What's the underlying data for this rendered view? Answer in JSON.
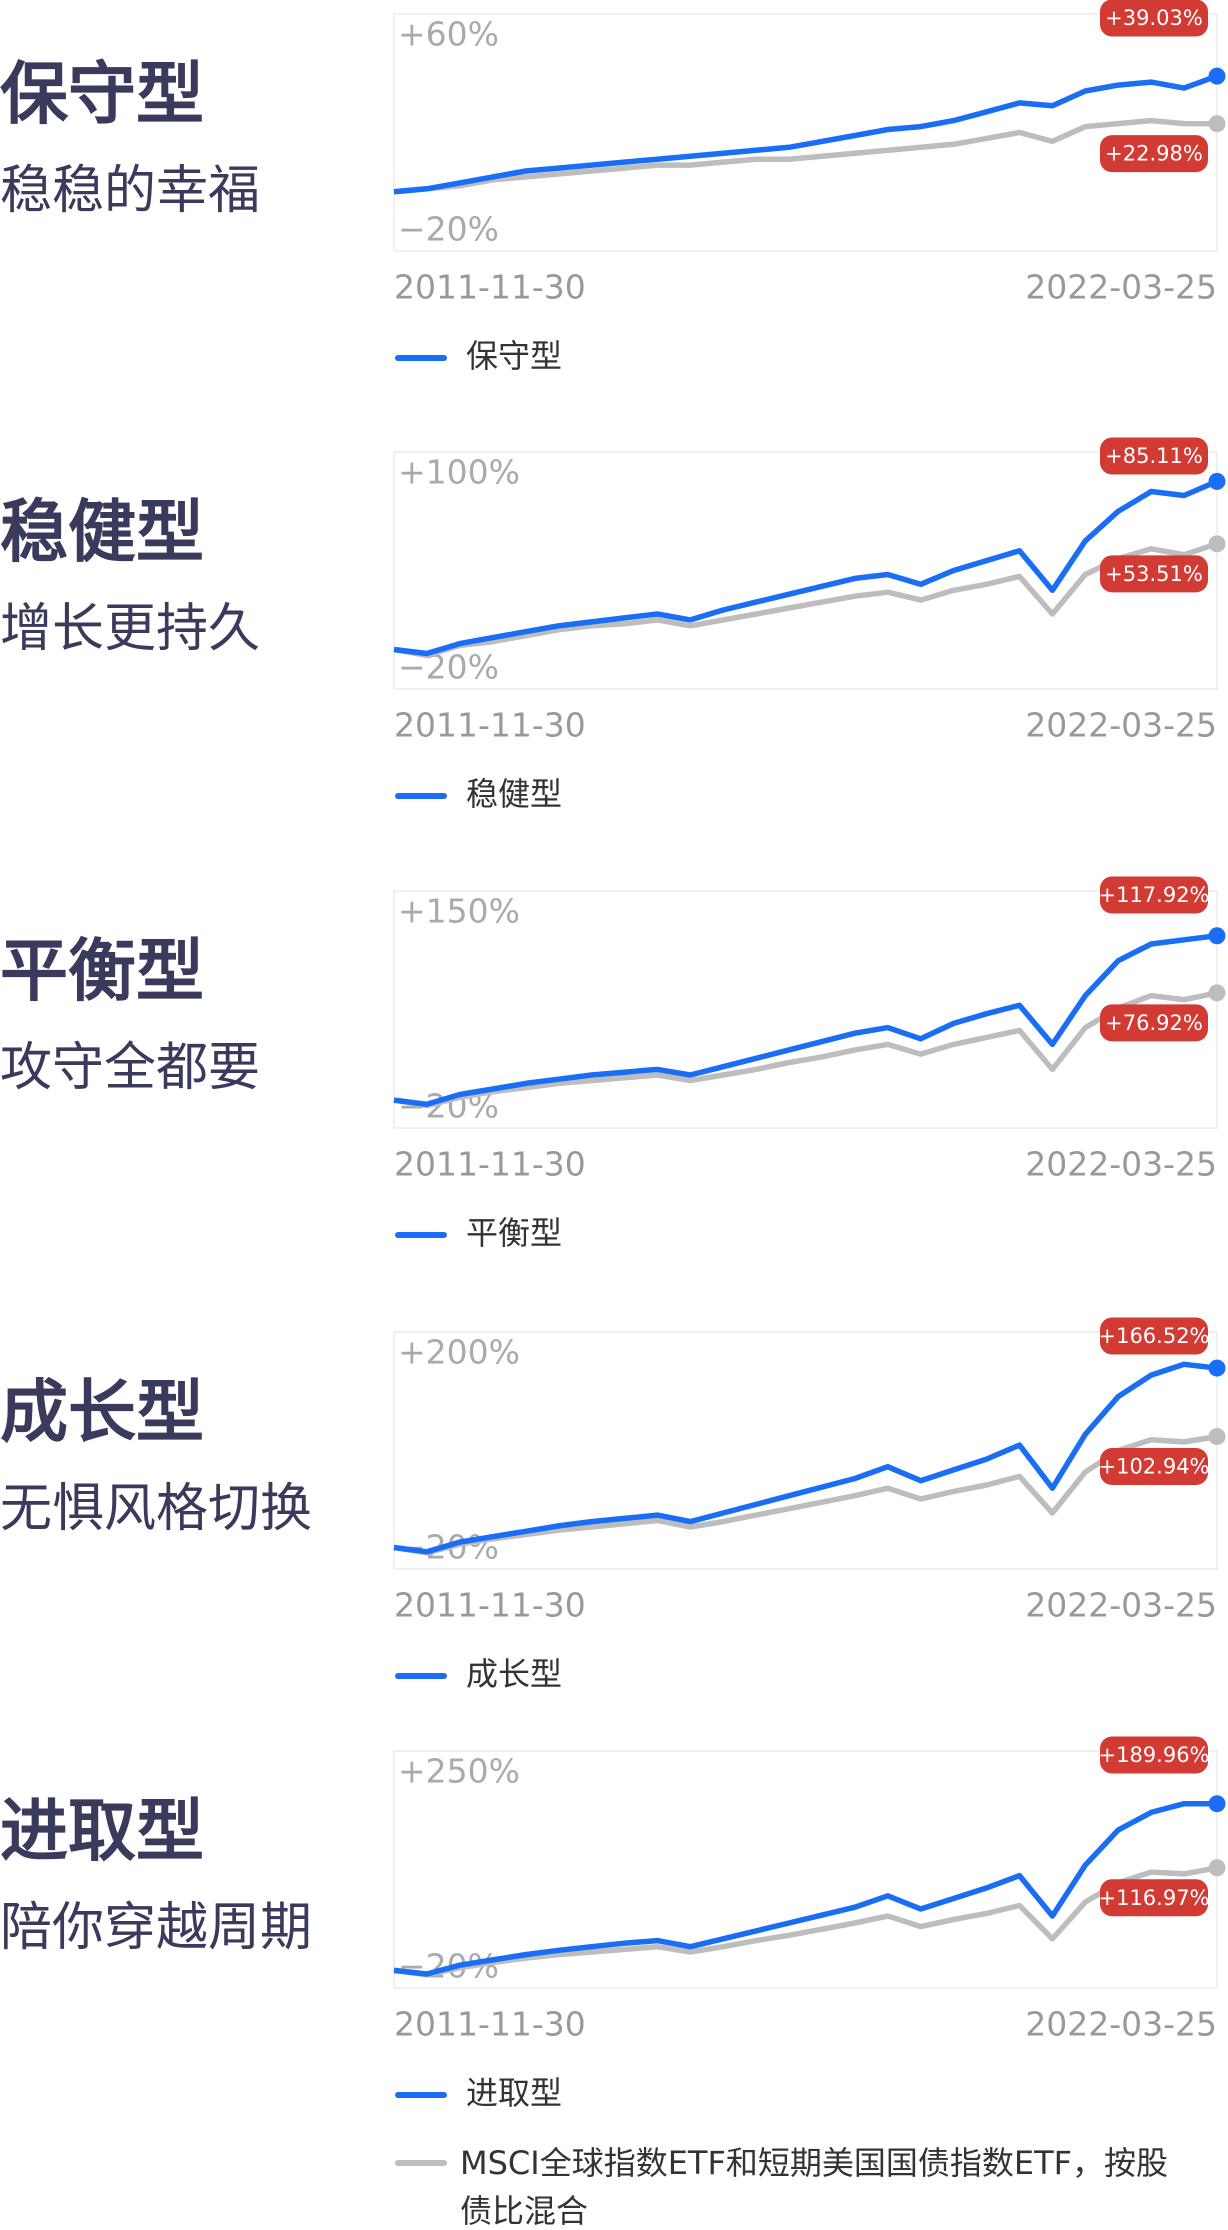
{
  "chart_data": [
    {
      "type": "line",
      "title": "保守型",
      "subtitle": "稳稳的幸福",
      "categories": [
        "2011-11-30",
        null,
        null,
        null,
        null,
        null,
        null,
        null,
        null,
        null,
        null,
        null,
        null,
        null,
        null,
        null,
        null,
        null,
        null,
        null,
        null,
        null,
        null,
        null,
        null,
        "2022-03-25"
      ],
      "ylim": [
        -20,
        60
      ],
      "yticks": [
        {
          "value": 60,
          "label": "+60%"
        },
        {
          "value": -20,
          "label": "−20%"
        }
      ],
      "series": [
        {
          "name": "保守型",
          "color": "#1a6ef5",
          "values": [
            0,
            1,
            3,
            5,
            7,
            8,
            9,
            10,
            11,
            12,
            13,
            14,
            15,
            17,
            19,
            21,
            22,
            24,
            27,
            30,
            29,
            34,
            36,
            37,
            35,
            39.03
          ],
          "value_labels": [
            null,
            null,
            null,
            null,
            null,
            null,
            null,
            null,
            null,
            null,
            null,
            null,
            null,
            null,
            null,
            null,
            null,
            null,
            null,
            null,
            null,
            null,
            null,
            null,
            null,
            "+39.03%"
          ]
        },
        {
          "color": "#bdbdbd",
          "values": [
            0,
            1,
            2,
            4,
            5,
            6,
            7,
            8,
            9,
            9,
            10,
            11,
            11,
            12,
            13,
            14,
            15,
            16,
            18,
            20,
            17,
            22,
            23,
            24,
            23,
            22.98
          ],
          "value_labels": [
            null,
            null,
            null,
            null,
            null,
            null,
            null,
            null,
            null,
            null,
            null,
            null,
            null,
            null,
            null,
            null,
            null,
            null,
            null,
            null,
            null,
            null,
            null,
            null,
            null,
            "+22.98%"
          ]
        }
      ]
    },
    {
      "type": "line",
      "title": "稳健型",
      "subtitle": "增长更持久",
      "categories": [
        "2011-11-30",
        null,
        null,
        null,
        null,
        null,
        null,
        null,
        null,
        null,
        null,
        null,
        null,
        null,
        null,
        null,
        null,
        null,
        null,
        null,
        null,
        null,
        null,
        null,
        null,
        "2022-03-25"
      ],
      "ylim": [
        -20,
        100
      ],
      "yticks": [
        {
          "value": 100,
          "label": "+100%"
        },
        {
          "value": -20,
          "label": "−20%"
        }
      ],
      "series": [
        {
          "name": "稳健型",
          "color": "#1a6ef5",
          "values": [
            0,
            -2,
            3,
            6,
            9,
            12,
            14,
            16,
            18,
            15,
            20,
            24,
            28,
            32,
            36,
            38,
            33,
            40,
            45,
            50,
            30,
            55,
            70,
            80,
            78,
            85.11
          ],
          "value_labels": [
            null,
            null,
            null,
            null,
            null,
            null,
            null,
            null,
            null,
            null,
            null,
            null,
            null,
            null,
            null,
            null,
            null,
            null,
            null,
            null,
            null,
            null,
            null,
            null,
            null,
            "+85.11%"
          ]
        },
        {
          "color": "#bdbdbd",
          "values": [
            0,
            -3,
            2,
            4,
            7,
            10,
            12,
            13,
            15,
            12,
            15,
            18,
            21,
            24,
            27,
            29,
            25,
            30,
            33,
            37,
            18,
            38,
            46,
            51,
            48,
            53.51
          ],
          "value_labels": [
            null,
            null,
            null,
            null,
            null,
            null,
            null,
            null,
            null,
            null,
            null,
            null,
            null,
            null,
            null,
            null,
            null,
            null,
            null,
            null,
            null,
            null,
            null,
            null,
            null,
            "+53.51%"
          ]
        }
      ]
    },
    {
      "type": "line",
      "title": "平衡型",
      "subtitle": "攻守全都要",
      "categories": [
        "2011-11-30",
        null,
        null,
        null,
        null,
        null,
        null,
        null,
        null,
        null,
        null,
        null,
        null,
        null,
        null,
        null,
        null,
        null,
        null,
        null,
        null,
        null,
        null,
        null,
        null,
        "2022-03-25"
      ],
      "ylim": [
        -20,
        150
      ],
      "yticks": [
        {
          "value": 150,
          "label": "+150%"
        },
        {
          "value": -20,
          "label": "−20%"
        }
      ],
      "series": [
        {
          "name": "平衡型",
          "color": "#1a6ef5",
          "values": [
            0,
            -3,
            4,
            8,
            12,
            15,
            18,
            20,
            22,
            18,
            24,
            30,
            36,
            42,
            48,
            52,
            44,
            55,
            62,
            68,
            40,
            75,
            100,
            112,
            115,
            117.92
          ],
          "value_labels": [
            null,
            null,
            null,
            null,
            null,
            null,
            null,
            null,
            null,
            null,
            null,
            null,
            null,
            null,
            null,
            null,
            null,
            null,
            null,
            null,
            null,
            null,
            null,
            null,
            null,
            "+117.92%"
          ]
        },
        {
          "color": "#bdbdbd",
          "values": [
            0,
            -4,
            2,
            6,
            9,
            12,
            14,
            16,
            18,
            14,
            18,
            22,
            27,
            31,
            36,
            40,
            33,
            40,
            45,
            50,
            22,
            52,
            66,
            75,
            72,
            76.92
          ],
          "value_labels": [
            null,
            null,
            null,
            null,
            null,
            null,
            null,
            null,
            null,
            null,
            null,
            null,
            null,
            null,
            null,
            null,
            null,
            null,
            null,
            null,
            null,
            null,
            null,
            null,
            null,
            "+76.92%"
          ]
        }
      ]
    },
    {
      "type": "line",
      "title": "成长型",
      "subtitle": "无惧风格切换",
      "categories": [
        "2011-11-30",
        null,
        null,
        null,
        null,
        null,
        null,
        null,
        null,
        null,
        null,
        null,
        null,
        null,
        null,
        null,
        null,
        null,
        null,
        null,
        null,
        null,
        null,
        null,
        null,
        "2022-03-25"
      ],
      "ylim": [
        -20,
        200
      ],
      "yticks": [
        {
          "value": 200,
          "label": "+200%"
        },
        {
          "value": -20,
          "label": "−20%"
        }
      ],
      "series": [
        {
          "name": "成长型",
          "color": "#1a6ef5",
          "values": [
            0,
            -4,
            5,
            10,
            15,
            20,
            24,
            27,
            30,
            24,
            32,
            40,
            48,
            56,
            64,
            75,
            62,
            72,
            82,
            95,
            55,
            105,
            140,
            160,
            170,
            166.52
          ],
          "value_labels": [
            null,
            null,
            null,
            null,
            null,
            null,
            null,
            null,
            null,
            null,
            null,
            null,
            null,
            null,
            null,
            null,
            null,
            null,
            null,
            null,
            null,
            null,
            null,
            null,
            null,
            "+166.52%"
          ]
        },
        {
          "color": "#bdbdbd",
          "values": [
            0,
            -5,
            3,
            8,
            12,
            16,
            19,
            22,
            25,
            19,
            24,
            30,
            36,
            42,
            48,
            55,
            45,
            52,
            58,
            66,
            32,
            70,
            90,
            100,
            98,
            102.94
          ],
          "value_labels": [
            null,
            null,
            null,
            null,
            null,
            null,
            null,
            null,
            null,
            null,
            null,
            null,
            null,
            null,
            null,
            null,
            null,
            null,
            null,
            null,
            null,
            null,
            null,
            null,
            null,
            "+102.94%"
          ]
        }
      ]
    },
    {
      "type": "line",
      "title": "进取型",
      "subtitle": "陪你穿越周期",
      "categories": [
        "2011-11-30",
        null,
        null,
        null,
        null,
        null,
        null,
        null,
        null,
        null,
        null,
        null,
        null,
        null,
        null,
        null,
        null,
        null,
        null,
        null,
        null,
        null,
        null,
        null,
        null,
        "2022-03-25"
      ],
      "ylim": [
        -20,
        250
      ],
      "yticks": [
        {
          "value": 250,
          "label": "+250%"
        },
        {
          "value": -20,
          "label": "−20%"
        }
      ],
      "series": [
        {
          "name": "进取型",
          "color": "#1a6ef5",
          "values": [
            0,
            -4,
            6,
            12,
            18,
            23,
            27,
            31,
            34,
            27,
            36,
            45,
            54,
            63,
            72,
            85,
            70,
            82,
            94,
            108,
            62,
            120,
            160,
            180,
            190,
            189.96
          ],
          "value_labels": [
            null,
            null,
            null,
            null,
            null,
            null,
            null,
            null,
            null,
            null,
            null,
            null,
            null,
            null,
            null,
            null,
            null,
            null,
            null,
            null,
            null,
            null,
            null,
            null,
            null,
            "+189.96%"
          ]
        },
        {
          "name": "MSCI全球指数ETF和短期美国国债指数ETF，按股债比混合",
          "color": "#bdbdbd",
          "values": [
            0,
            -5,
            3,
            9,
            14,
            18,
            21,
            24,
            27,
            21,
            27,
            34,
            40,
            47,
            54,
            62,
            50,
            58,
            65,
            74,
            36,
            78,
            100,
            112,
            110,
            116.97
          ],
          "value_labels": [
            null,
            null,
            null,
            null,
            null,
            null,
            null,
            null,
            null,
            null,
            null,
            null,
            null,
            null,
            null,
            null,
            null,
            null,
            null,
            null,
            null,
            null,
            null,
            null,
            null,
            "+116.97%"
          ]
        }
      ]
    }
  ]
}
